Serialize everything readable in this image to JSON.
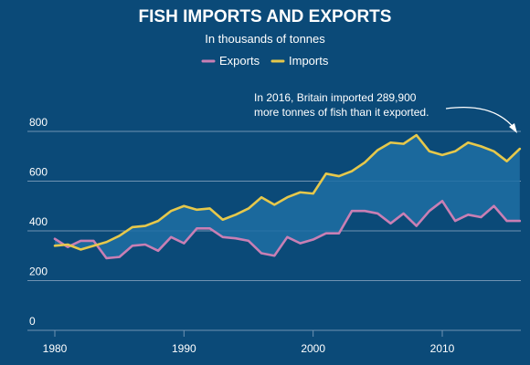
{
  "colors": {
    "background": "#0b4a78",
    "exports": "#c97fb4",
    "imports": "#e6c84b",
    "fill": "#1f6fa3",
    "grid": "#6f93b2",
    "text": "#ffffff"
  },
  "chart_data": {
    "type": "area",
    "title": "FISH IMPORTS AND EXPORTS",
    "subtitle": "In thousands of tonnes",
    "xlabel": "",
    "ylabel": "",
    "xlim": [
      1979,
      2016
    ],
    "ylim": [
      0,
      850
    ],
    "grid": true,
    "legend_position": "top-center",
    "x_ticks": [
      1980,
      1990,
      2000,
      2010
    ],
    "x_tick_labels": [
      "1980",
      "1990",
      "2000",
      "2010"
    ],
    "y_ticks": [
      0,
      200,
      400,
      600,
      800
    ],
    "y_tick_labels": [
      "0",
      "200",
      "400",
      "600",
      "800"
    ],
    "x": [
      1980,
      1981,
      1982,
      1983,
      1984,
      1985,
      1986,
      1987,
      1988,
      1989,
      1990,
      1991,
      1992,
      1993,
      1994,
      1995,
      1996,
      1997,
      1998,
      1999,
      2000,
      2001,
      2002,
      2003,
      2004,
      2005,
      2006,
      2007,
      2008,
      2009,
      2010,
      2011,
      2012,
      2013,
      2014,
      2015,
      2016
    ],
    "series": [
      {
        "name": "Exports",
        "values": [
          368,
          335,
          360,
          360,
          290,
          295,
          340,
          345,
          320,
          375,
          350,
          410,
          410,
          375,
          370,
          360,
          310,
          300,
          375,
          350,
          365,
          390,
          390,
          480,
          480,
          470,
          430,
          470,
          420,
          480,
          520,
          440,
          465,
          455,
          500,
          440,
          440
        ]
      },
      {
        "name": "Imports",
        "values": [
          340,
          345,
          325,
          340,
          355,
          380,
          415,
          420,
          440,
          480,
          500,
          485,
          490,
          445,
          465,
          490,
          535,
          505,
          535,
          555,
          550,
          630,
          620,
          640,
          675,
          725,
          755,
          750,
          785,
          720,
          705,
          720,
          755,
          740,
          720,
          680,
          730
        ]
      }
    ],
    "annotations": [
      {
        "text_lines": [
          "In 2016, Britain imported 289,900",
          "more tonnes of fish than it exported."
        ],
        "x": 2016,
        "y": 730
      }
    ]
  }
}
